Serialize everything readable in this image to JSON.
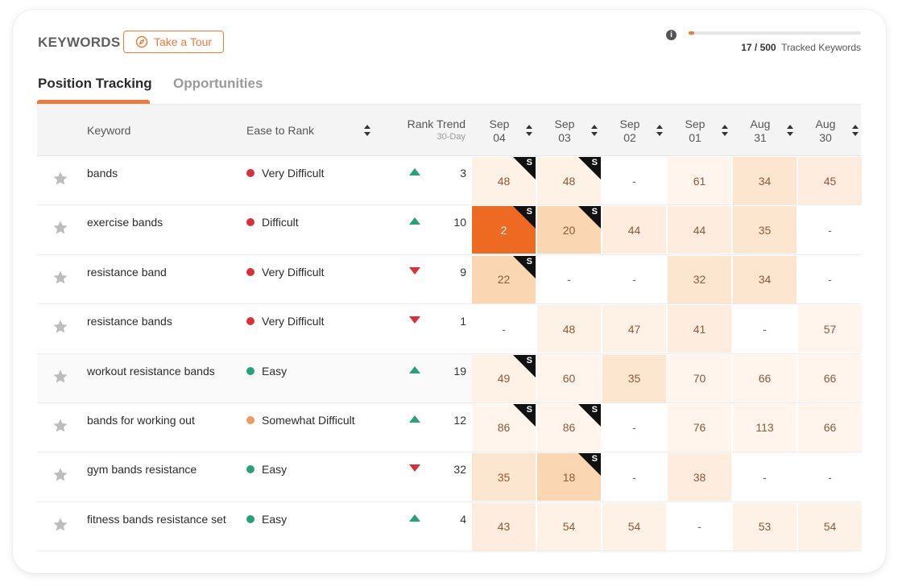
{
  "header": {
    "title": "KEYWORDS",
    "tour_label": "Take a Tour",
    "tour_icon": "compass-icon",
    "info_icon": "info-icon",
    "tracked_count": "17 / 500",
    "tracked_label": "Tracked Keywords",
    "tracked_progress": 0.034
  },
  "tabs": [
    {
      "label": "Position Tracking",
      "active": true
    },
    {
      "label": "Opportunities",
      "active": false
    }
  ],
  "columns": {
    "keyword": "Keyword",
    "ease": "Ease to Rank",
    "trend": "Rank Trend",
    "trend_sub": "30-Day",
    "dates": [
      {
        "month": "Sep",
        "day": "04"
      },
      {
        "month": "Sep",
        "day": "03"
      },
      {
        "month": "Sep",
        "day": "02"
      },
      {
        "month": "Sep",
        "day": "01"
      },
      {
        "month": "Aug",
        "day": "31"
      },
      {
        "month": "Aug",
        "day": "30"
      }
    ]
  },
  "colors": {
    "accent": "#ee7a3c",
    "very_difficult": "#d9303a",
    "difficult": "#d9303a",
    "somewhat_difficult": "#f09a5c",
    "easy": "#26a17b",
    "trend_up": "#26a17b",
    "trend_down": "#d9303a"
  },
  "rows": [
    {
      "keyword": "bands",
      "ease": "Very Difficult",
      "ease_level": "very_difficult",
      "trend": "up",
      "trend_value": "3",
      "cells": [
        {
          "v": "48",
          "s": true
        },
        {
          "v": "48",
          "s": true
        },
        {
          "v": "-",
          "s": false
        },
        {
          "v": "61",
          "s": false
        },
        {
          "v": "34",
          "s": false
        },
        {
          "v": "45",
          "s": false
        }
      ]
    },
    {
      "keyword": "exercise bands",
      "ease": "Difficult",
      "ease_level": "difficult",
      "trend": "up",
      "trend_value": "10",
      "cells": [
        {
          "v": "2",
          "s": true
        },
        {
          "v": "20",
          "s": true
        },
        {
          "v": "44",
          "s": false
        },
        {
          "v": "44",
          "s": false
        },
        {
          "v": "35",
          "s": false
        },
        {
          "v": "-",
          "s": false
        }
      ]
    },
    {
      "keyword": "resistance band",
      "ease": "Very Difficult",
      "ease_level": "very_difficult",
      "trend": "down",
      "trend_value": "9",
      "cells": [
        {
          "v": "22",
          "s": true
        },
        {
          "v": "-",
          "s": false
        },
        {
          "v": "-",
          "s": false
        },
        {
          "v": "32",
          "s": false
        },
        {
          "v": "34",
          "s": false
        },
        {
          "v": "-",
          "s": false
        }
      ]
    },
    {
      "keyword": "resistance bands",
      "ease": "Very Difficult",
      "ease_level": "very_difficult",
      "trend": "down",
      "trend_value": "1",
      "cells": [
        {
          "v": "-",
          "s": false
        },
        {
          "v": "48",
          "s": false
        },
        {
          "v": "47",
          "s": false
        },
        {
          "v": "41",
          "s": false
        },
        {
          "v": "-",
          "s": false
        },
        {
          "v": "57",
          "s": false
        }
      ]
    },
    {
      "keyword": "workout resistance bands",
      "ease": "Easy",
      "ease_level": "easy",
      "trend": "up",
      "trend_value": "19",
      "cells": [
        {
          "v": "49",
          "s": true
        },
        {
          "v": "60",
          "s": false
        },
        {
          "v": "35",
          "s": false
        },
        {
          "v": "70",
          "s": false
        },
        {
          "v": "66",
          "s": false
        },
        {
          "v": "66",
          "s": false
        }
      ]
    },
    {
      "keyword": "bands for working out",
      "ease": "Somewhat Difficult",
      "ease_level": "somewhat_difficult",
      "trend": "up",
      "trend_value": "12",
      "cells": [
        {
          "v": "86",
          "s": true
        },
        {
          "v": "86",
          "s": true
        },
        {
          "v": "-",
          "s": false
        },
        {
          "v": "76",
          "s": false
        },
        {
          "v": "113",
          "s": false
        },
        {
          "v": "66",
          "s": false
        }
      ]
    },
    {
      "keyword": "gym bands resistance",
      "ease": "Easy",
      "ease_level": "easy",
      "trend": "down",
      "trend_value": "32",
      "cells": [
        {
          "v": "35",
          "s": false
        },
        {
          "v": "18",
          "s": true
        },
        {
          "v": "-",
          "s": false
        },
        {
          "v": "38",
          "s": false
        },
        {
          "v": "-",
          "s": false
        },
        {
          "v": "-",
          "s": false
        }
      ]
    },
    {
      "keyword": "fitness bands resistance set",
      "ease": "Easy",
      "ease_level": "easy",
      "trend": "up",
      "trend_value": "4",
      "cells": [
        {
          "v": "43",
          "s": false
        },
        {
          "v": "54",
          "s": false
        },
        {
          "v": "54",
          "s": false
        },
        {
          "v": "-",
          "s": false
        },
        {
          "v": "53",
          "s": false
        },
        {
          "v": "54",
          "s": false
        }
      ]
    }
  ],
  "snippet_badge": "S",
  "star_icon": "star-icon",
  "shaded_row": 4
}
